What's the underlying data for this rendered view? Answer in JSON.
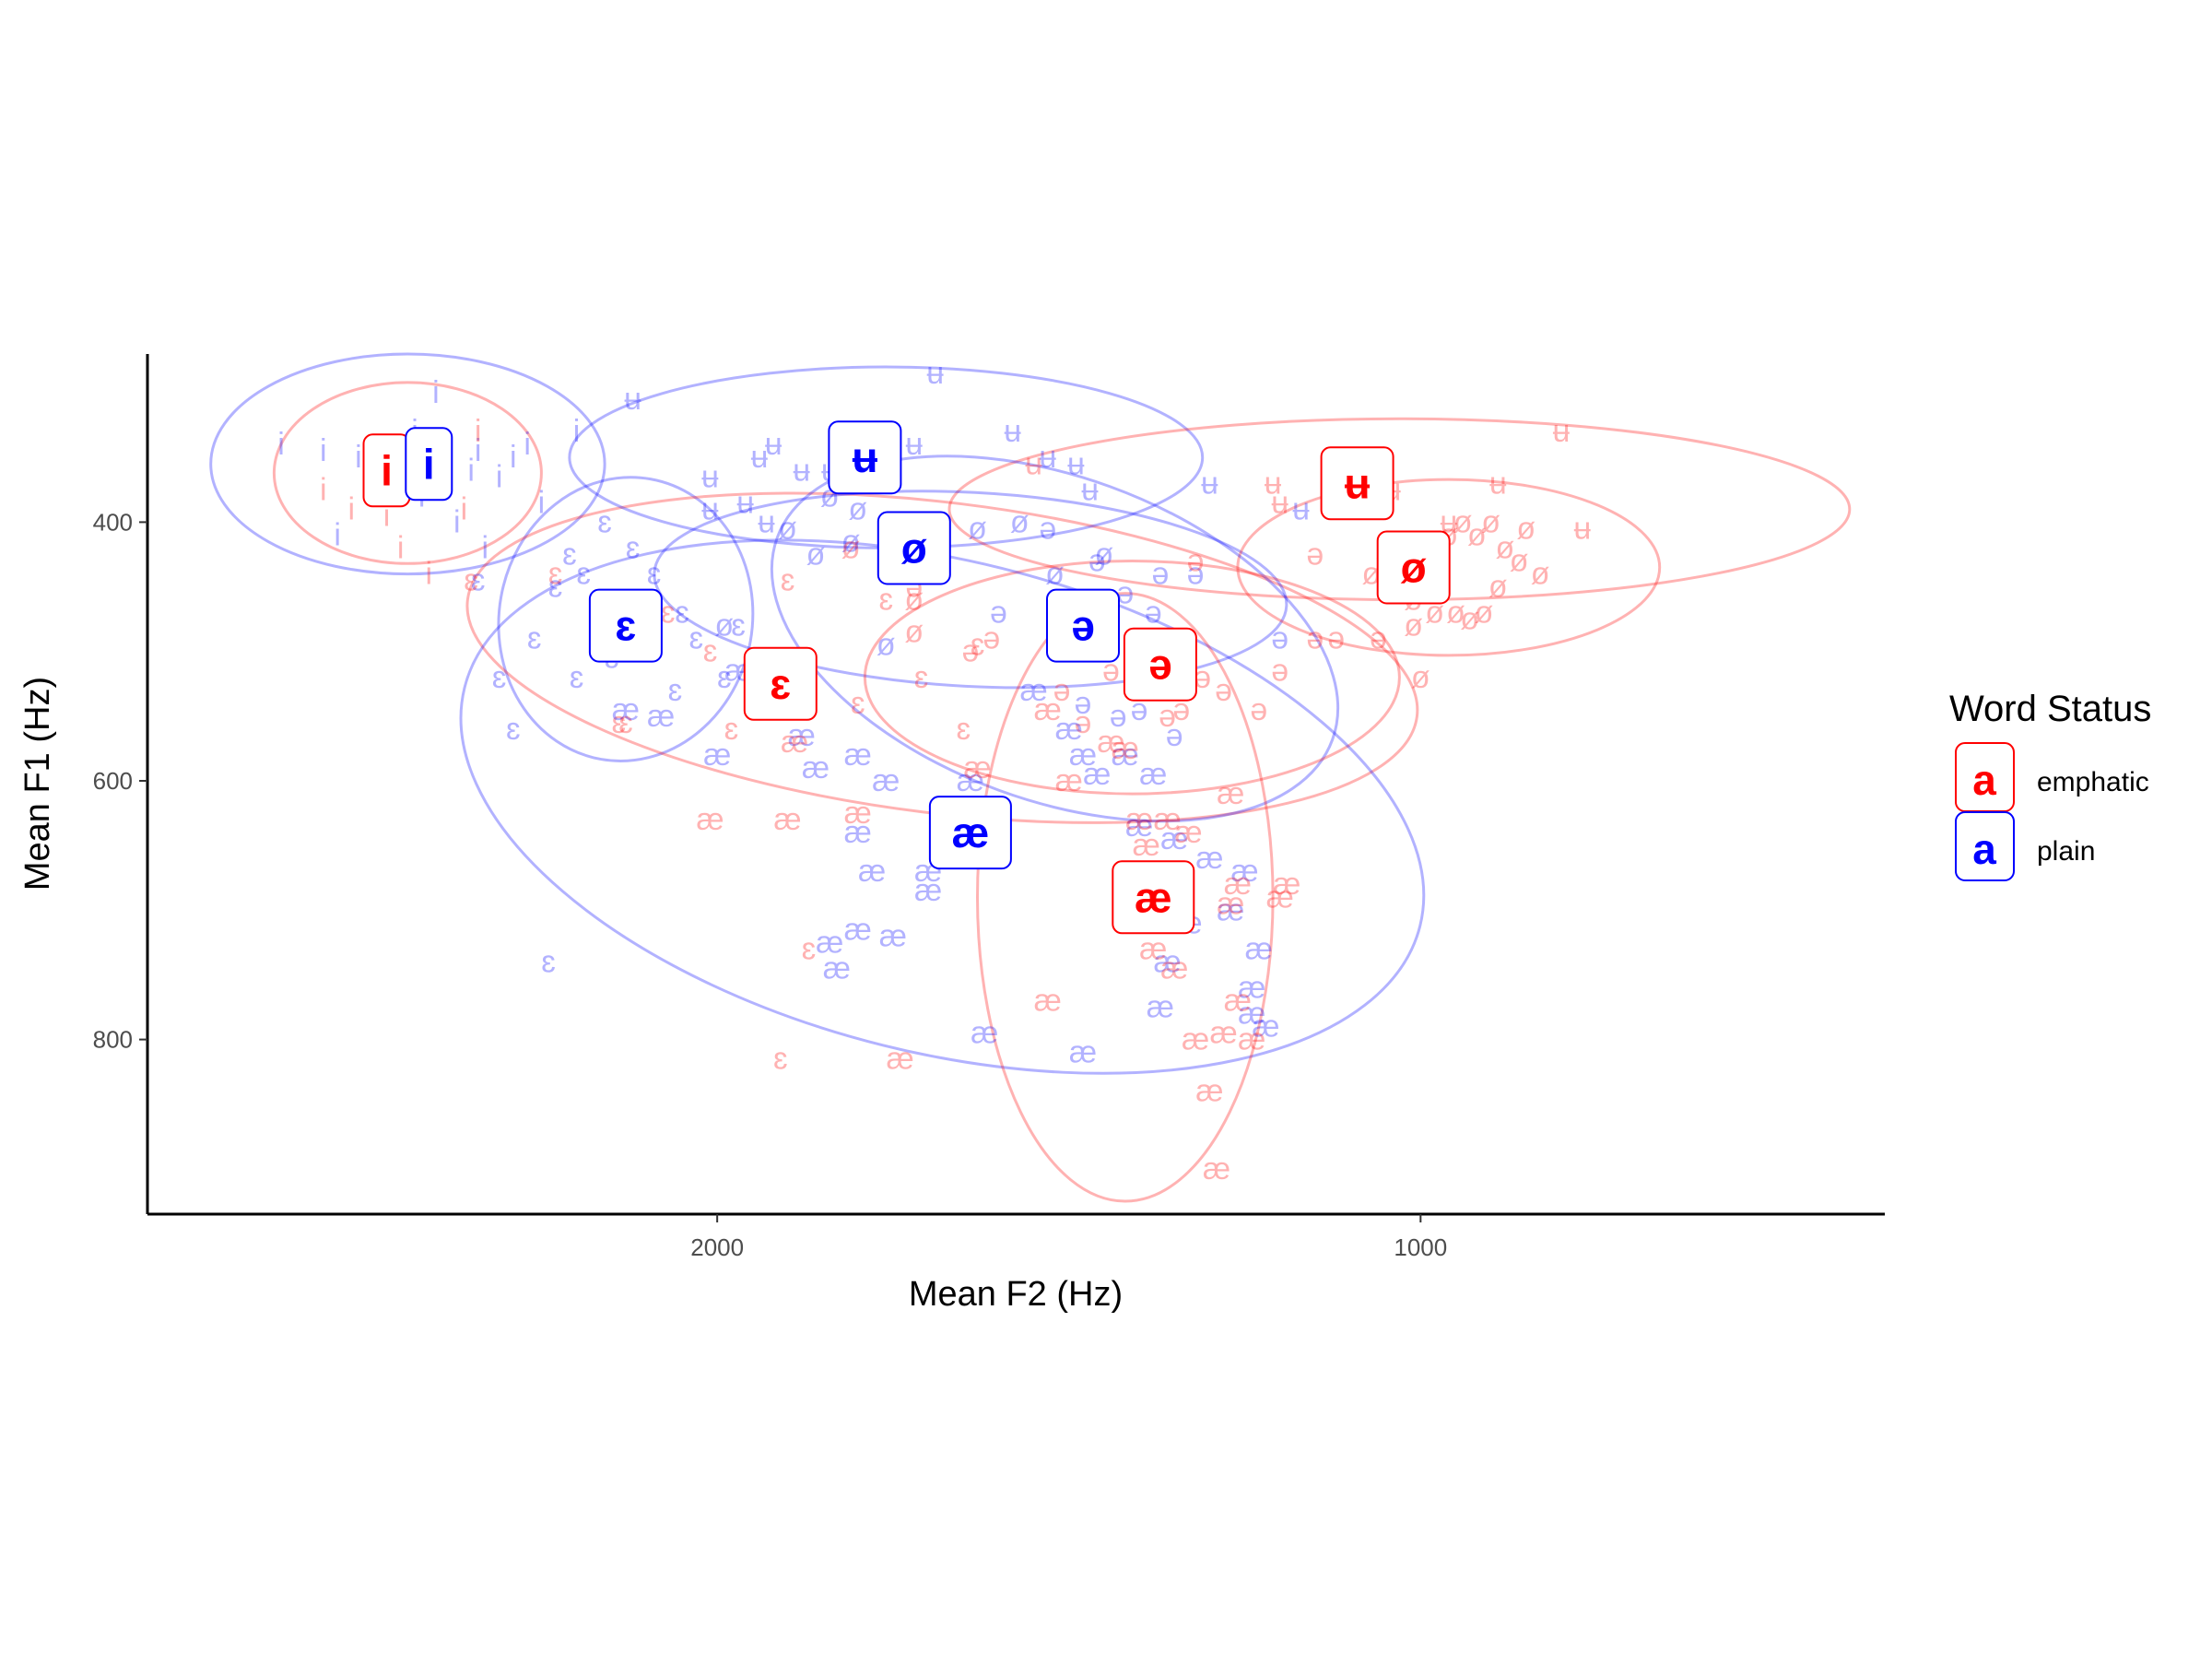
{
  "chart_data": {
    "type": "scatter",
    "xlabel": "Mean F2 (Hz)",
    "ylabel": "Mean F1 (Hz)",
    "x_reversed": true,
    "y_reversed": true,
    "xlim": [
      2810,
      340
    ],
    "ylim": [
      270,
      935
    ],
    "x_ticks": [
      2000,
      1000
    ],
    "x_tick_labels": [
      "2000",
      "1000"
    ],
    "y_ticks": [
      400,
      600,
      800
    ],
    "y_tick_labels": [
      "400",
      "600",
      "800"
    ],
    "grid": false,
    "legend": {
      "title": "Word Status",
      "position": "right",
      "key_glyph": "a",
      "entries": [
        "emphatic",
        "plain"
      ]
    },
    "colors": {
      "emphatic": "#ff0000",
      "plain": "#0000ff"
    },
    "groups": [
      {
        "name": "emphatic",
        "color": "#ff0000",
        "vowel": "i",
        "mean": [
          2470,
          360
        ],
        "ellipse": {
          "cx": 2440,
          "cy": 362,
          "rx": 190,
          "ry": 70,
          "angle": 0
        }
      },
      {
        "name": "plain",
        "color": "#0000ff",
        "vowel": "i",
        "mean": [
          2410,
          355
        ],
        "ellipse": {
          "cx": 2440,
          "cy": 355,
          "rx": 280,
          "ry": 85,
          "angle": 0
        }
      },
      {
        "name": "plain",
        "color": "#0000ff",
        "vowel": "ɛ",
        "mean": [
          2130,
          480
        ],
        "ellipse": {
          "cx": 2130,
          "cy": 475,
          "rx": 180,
          "ry": 110,
          "angle": 10
        }
      },
      {
        "name": "emphatic",
        "color": "#ff0000",
        "vowel": "ɛ",
        "mean": [
          1910,
          525
        ],
        "ellipse": {
          "cx": 1680,
          "cy": 505,
          "rx": 680,
          "ry": 120,
          "angle": 7
        }
      },
      {
        "name": "plain",
        "color": "#0000ff",
        "vowel": "ʉ",
        "mean": [
          1790,
          350
        ],
        "ellipse": {
          "cx": 1760,
          "cy": 350,
          "rx": 450,
          "ry": 70,
          "angle": 0
        }
      },
      {
        "name": "emphatic",
        "color": "#ff0000",
        "vowel": "ʉ",
        "mean": [
          1090,
          370
        ],
        "ellipse": {
          "cx": 1030,
          "cy": 390,
          "rx": 640,
          "ry": 70,
          "angle": 0
        }
      },
      {
        "name": "plain",
        "color": "#0000ff",
        "vowel": "ø",
        "mean": [
          1720,
          420
        ],
        "ellipse": {
          "cx": 1640,
          "cy": 452,
          "rx": 450,
          "ry": 75,
          "angle": 3
        }
      },
      {
        "name": "emphatic",
        "color": "#ff0000",
        "vowel": "ø",
        "mean": [
          1010,
          435
        ],
        "ellipse": {
          "cx": 960,
          "cy": 435,
          "rx": 300,
          "ry": 68,
          "angle": 0
        }
      },
      {
        "name": "plain",
        "color": "#0000ff",
        "vowel": "ə",
        "mean": [
          1480,
          480
        ],
        "ellipse": {
          "cx": 1520,
          "cy": 490,
          "rx": 420,
          "ry": 125,
          "angle": 20
        }
      },
      {
        "name": "emphatic",
        "color": "#ff0000",
        "vowel": "ə",
        "mean": [
          1370,
          510
        ],
        "ellipse": {
          "cx": 1410,
          "cy": 520,
          "rx": 380,
          "ry": 90,
          "angle": 0
        }
      },
      {
        "name": "plain",
        "color": "#0000ff",
        "vowel": "æ",
        "mean": [
          1640,
          640
        ],
        "ellipse": {
          "cx": 1680,
          "cy": 620,
          "rx": 700,
          "ry": 190,
          "angle": 14
        }
      },
      {
        "name": "emphatic",
        "color": "#ff0000",
        "vowel": "æ",
        "mean": [
          1380,
          690
        ],
        "ellipse": {
          "cx": 1420,
          "cy": 690,
          "rx": 210,
          "ry": 235,
          "angle": 0
        }
      }
    ],
    "points": [
      [
        "p",
        "i",
        2620,
        340
      ],
      [
        "p",
        "i",
        2560,
        345
      ],
      [
        "p",
        "i",
        2510,
        350
      ],
      [
        "p",
        "i",
        2480,
        355
      ],
      [
        "p",
        "i",
        2430,
        330
      ],
      [
        "p",
        "i",
        2400,
        300
      ],
      [
        "p",
        "i",
        2380,
        370
      ],
      [
        "p",
        "i",
        2350,
        360
      ],
      [
        "p",
        "i",
        2340,
        345
      ],
      [
        "p",
        "i",
        2310,
        365
      ],
      [
        "p",
        "i",
        2290,
        350
      ],
      [
        "p",
        "i",
        2270,
        340
      ],
      [
        "p",
        "i",
        2250,
        385
      ],
      [
        "p",
        "i",
        2330,
        420
      ],
      [
        "p",
        "i",
        2420,
        380
      ],
      [
        "p",
        "i",
        2540,
        410
      ],
      [
        "p",
        "i",
        2200,
        330
      ],
      [
        "p",
        "i",
        2370,
        400
      ],
      [
        "e",
        "i",
        2560,
        375
      ],
      [
        "e",
        "i",
        2520,
        390
      ],
      [
        "e",
        "i",
        2500,
        360
      ],
      [
        "e",
        "i",
        2470,
        395
      ],
      [
        "e",
        "i",
        2450,
        420
      ],
      [
        "e",
        "i",
        2410,
        440
      ],
      [
        "e",
        "i",
        2340,
        330
      ],
      [
        "e",
        "i",
        2360,
        390
      ],
      [
        "p",
        "ɛ",
        2340,
        445
      ],
      [
        "p",
        "ɛ",
        2310,
        520
      ],
      [
        "p",
        "ɛ",
        2290,
        560
      ],
      [
        "p",
        "ɛ",
        2260,
        490
      ],
      [
        "p",
        "ɛ",
        2230,
        450
      ],
      [
        "p",
        "ɛ",
        2210,
        425
      ],
      [
        "p",
        "ɛ",
        2190,
        440
      ],
      [
        "p",
        "ɛ",
        2170,
        470
      ],
      [
        "p",
        "ɛ",
        2150,
        505
      ],
      [
        "p",
        "ɛ",
        2120,
        420
      ],
      [
        "p",
        "ɛ",
        2090,
        440
      ],
      [
        "p",
        "ɛ",
        2050,
        470
      ],
      [
        "p",
        "ɛ",
        2030,
        490
      ],
      [
        "p",
        "ɛ",
        1990,
        520
      ],
      [
        "p",
        "ɛ",
        1970,
        480
      ],
      [
        "p",
        "ɛ",
        2200,
        520
      ],
      [
        "p",
        "ɛ",
        2160,
        400
      ],
      [
        "p",
        "ɛ",
        2240,
        740
      ],
      [
        "p",
        "ɛ",
        2060,
        530
      ],
      [
        "e",
        "ɛ",
        2350,
        445
      ],
      [
        "e",
        "ɛ",
        2230,
        440
      ],
      [
        "e",
        "ɛ",
        2130,
        555
      ],
      [
        "e",
        "ɛ",
        2070,
        470
      ],
      [
        "e",
        "ɛ",
        2010,
        500
      ],
      [
        "e",
        "ɛ",
        1980,
        560
      ],
      [
        "e",
        "ɛ",
        1900,
        445
      ],
      [
        "e",
        "ɛ",
        1880,
        510
      ],
      [
        "e",
        "ɛ",
        1800,
        540
      ],
      [
        "e",
        "ɛ",
        1760,
        460
      ],
      [
        "e",
        "ɛ",
        1710,
        520
      ],
      [
        "e",
        "ɛ",
        1650,
        560
      ],
      [
        "e",
        "ɛ",
        1630,
        495
      ],
      [
        "e",
        "ɛ",
        1870,
        730
      ],
      [
        "e",
        "ɛ",
        1910,
        815
      ],
      [
        "e",
        "ɛ",
        2120,
        470
      ],
      [
        "e",
        "ɛ",
        2140,
        555
      ],
      [
        "p",
        "ʉ",
        2120,
        305
      ],
      [
        "p",
        "ʉ",
        2010,
        365
      ],
      [
        "p",
        "ʉ",
        1960,
        385
      ],
      [
        "p",
        "ʉ",
        1940,
        350
      ],
      [
        "p",
        "ʉ",
        1920,
        340
      ],
      [
        "p",
        "ʉ",
        1880,
        360
      ],
      [
        "p",
        "ʉ",
        1840,
        360
      ],
      [
        "p",
        "ʉ",
        1780,
        345
      ],
      [
        "p",
        "ʉ",
        1720,
        340
      ],
      [
        "p",
        "ʉ",
        1690,
        285
      ],
      [
        "p",
        "ʉ",
        1580,
        330
      ],
      [
        "p",
        "ʉ",
        1530,
        350
      ],
      [
        "p",
        "ʉ",
        1490,
        355
      ],
      [
        "p",
        "ʉ",
        1470,
        375
      ],
      [
        "p",
        "ʉ",
        1300,
        370
      ],
      [
        "p",
        "ʉ",
        1170,
        390
      ],
      [
        "p",
        "ʉ",
        1930,
        400
      ],
      [
        "p",
        "ʉ",
        2010,
        390
      ],
      [
        "p",
        "ʉ",
        1800,
        370
      ],
      [
        "e",
        "ʉ",
        1550,
        355
      ],
      [
        "e",
        "ʉ",
        1200,
        385
      ],
      [
        "e",
        "ʉ",
        1120,
        370
      ],
      [
        "e",
        "ʉ",
        1080,
        385
      ],
      [
        "e",
        "ʉ",
        1040,
        375
      ],
      [
        "e",
        "ʉ",
        960,
        400
      ],
      [
        "e",
        "ʉ",
        890,
        370
      ],
      [
        "e",
        "ʉ",
        800,
        330
      ],
      [
        "e",
        "ʉ",
        770,
        405
      ],
      [
        "e",
        "ʉ",
        1210,
        370
      ],
      [
        "p",
        "ø",
        1840,
        380
      ],
      [
        "p",
        "ø",
        1800,
        390
      ],
      [
        "p",
        "ø",
        1760,
        430
      ],
      [
        "p",
        "ø",
        1700,
        410
      ],
      [
        "p",
        "ø",
        1630,
        405
      ],
      [
        "p",
        "ø",
        1570,
        400
      ],
      [
        "p",
        "ø",
        1520,
        440
      ],
      [
        "p",
        "ø",
        1490,
        470
      ],
      [
        "p",
        "ø",
        1450,
        425
      ],
      [
        "p",
        "ø",
        1760,
        495
      ],
      [
        "p",
        "ø",
        1990,
        480
      ],
      [
        "p",
        "ø",
        1900,
        405
      ],
      [
        "p",
        "ø",
        1860,
        425
      ],
      [
        "p",
        "ø",
        1810,
        415
      ],
      [
        "e",
        "ø",
        1810,
        420
      ],
      [
        "e",
        "ø",
        1760,
        435
      ],
      [
        "e",
        "ø",
        1720,
        485
      ],
      [
        "e",
        "ø",
        1720,
        460
      ],
      [
        "e",
        "ø",
        1070,
        440
      ],
      [
        "e",
        "ø",
        1050,
        420
      ],
      [
        "e",
        "ø",
        1000,
        415
      ],
      [
        "e",
        "ø",
        960,
        410
      ],
      [
        "e",
        "ø",
        940,
        400
      ],
      [
        "e",
        "ø",
        920,
        410
      ],
      [
        "e",
        "ø",
        900,
        400
      ],
      [
        "e",
        "ø",
        880,
        420
      ],
      [
        "e",
        "ø",
        860,
        430
      ],
      [
        "e",
        "ø",
        850,
        405
      ],
      [
        "e",
        "ø",
        830,
        440
      ],
      [
        "e",
        "ø",
        1010,
        460
      ],
      [
        "e",
        "ø",
        980,
        470
      ],
      [
        "e",
        "ø",
        950,
        470
      ],
      [
        "e",
        "ø",
        930,
        475
      ],
      [
        "e",
        "ø",
        910,
        470
      ],
      [
        "e",
        "ø",
        890,
        450
      ],
      [
        "e",
        "ø",
        1030,
        455
      ],
      [
        "e",
        "ø",
        1000,
        520
      ],
      [
        "e",
        "ø",
        1010,
        480
      ],
      [
        "p",
        "ə",
        1530,
        405
      ],
      [
        "p",
        "ə",
        1460,
        430
      ],
      [
        "p",
        "ə",
        1420,
        455
      ],
      [
        "p",
        "ə",
        1370,
        440
      ],
      [
        "p",
        "ə",
        1320,
        440
      ],
      [
        "p",
        "ə",
        1200,
        490
      ],
      [
        "p",
        "ə",
        1480,
        540
      ],
      [
        "p",
        "ə",
        1430,
        550
      ],
      [
        "p",
        "ə",
        1400,
        545
      ],
      [
        "p",
        "ə",
        1350,
        565
      ],
      [
        "p",
        "ə",
        1600,
        470
      ],
      [
        "p",
        "ə",
        1380,
        470
      ],
      [
        "e",
        "ə",
        1720,
        450
      ],
      [
        "e",
        "ə",
        1640,
        500
      ],
      [
        "e",
        "ə",
        1610,
        490
      ],
      [
        "e",
        "ə",
        1510,
        530
      ],
      [
        "e",
        "ə",
        1480,
        555
      ],
      [
        "e",
        "ə",
        1440,
        515
      ],
      [
        "e",
        "ə",
        1400,
        525
      ],
      [
        "e",
        "ə",
        1360,
        550
      ],
      [
        "e",
        "ə",
        1340,
        545
      ],
      [
        "e",
        "ə",
        1310,
        520
      ],
      [
        "e",
        "ə",
        1280,
        530
      ],
      [
        "e",
        "ə",
        1230,
        545
      ],
      [
        "e",
        "ə",
        1200,
        515
      ],
      [
        "e",
        "ə",
        1150,
        425
      ],
      [
        "e",
        "ə",
        1150,
        490
      ],
      [
        "e",
        "ə",
        1120,
        490
      ],
      [
        "e",
        "ə",
        1060,
        490
      ],
      [
        "e",
        "ə",
        1320,
        430
      ],
      [
        "p",
        "æ",
        2130,
        545
      ],
      [
        "p",
        "æ",
        2080,
        550
      ],
      [
        "p",
        "æ",
        2000,
        580
      ],
      [
        "p",
        "æ",
        1970,
        515
      ],
      [
        "p",
        "æ",
        1880,
        565
      ],
      [
        "p",
        "æ",
        1860,
        590
      ],
      [
        "p",
        "æ",
        1800,
        580
      ],
      [
        "p",
        "æ",
        1800,
        640
      ],
      [
        "p",
        "æ",
        1780,
        670
      ],
      [
        "p",
        "æ",
        1760,
        600
      ],
      [
        "p",
        "æ",
        1700,
        670
      ],
      [
        "p",
        "æ",
        1640,
        600
      ],
      [
        "p",
        "æ",
        1550,
        530
      ],
      [
        "p",
        "æ",
        1500,
        560
      ],
      [
        "p",
        "æ",
        1480,
        580
      ],
      [
        "p",
        "æ",
        1460,
        595
      ],
      [
        "p",
        "æ",
        1420,
        580
      ],
      [
        "p",
        "æ",
        1380,
        595
      ],
      [
        "p",
        "æ",
        1350,
        645
      ],
      [
        "p",
        "æ",
        1400,
        635
      ],
      [
        "p",
        "æ",
        1300,
        660
      ],
      [
        "p",
        "æ",
        1250,
        670
      ],
      [
        "p",
        "æ",
        1270,
        700
      ],
      [
        "p",
        "æ",
        1230,
        730
      ],
      [
        "p",
        "æ",
        1240,
        760
      ],
      [
        "p",
        "æ",
        1240,
        780
      ],
      [
        "p",
        "æ",
        1220,
        790
      ],
      [
        "p",
        "æ",
        1370,
        775
      ],
      [
        "p",
        "æ",
        1360,
        740
      ],
      [
        "p",
        "æ",
        1330,
        710
      ],
      [
        "p",
        "æ",
        1480,
        810
      ],
      [
        "p",
        "æ",
        1620,
        795
      ],
      [
        "p",
        "æ",
        1750,
        720
      ],
      [
        "p",
        "æ",
        1700,
        685
      ],
      [
        "p",
        "æ",
        1830,
        745
      ],
      [
        "p",
        "æ",
        1800,
        715
      ],
      [
        "p",
        "æ",
        1840,
        725
      ],
      [
        "e",
        "æ",
        2010,
        630
      ],
      [
        "e",
        "æ",
        1900,
        630
      ],
      [
        "e",
        "æ",
        1890,
        570
      ],
      [
        "e",
        "æ",
        1800,
        625
      ],
      [
        "e",
        "æ",
        1630,
        590
      ],
      [
        "e",
        "æ",
        1530,
        545
      ],
      [
        "e",
        "æ",
        1500,
        600
      ],
      [
        "e",
        "æ",
        1440,
        570
      ],
      [
        "e",
        "æ",
        1420,
        575
      ],
      [
        "e",
        "æ",
        1400,
        630
      ],
      [
        "e",
        "æ",
        1390,
        650
      ],
      [
        "e",
        "æ",
        1360,
        630
      ],
      [
        "e",
        "æ",
        1330,
        640
      ],
      [
        "e",
        "æ",
        1270,
        610
      ],
      [
        "e",
        "æ",
        1260,
        680
      ],
      [
        "e",
        "æ",
        1270,
        695
      ],
      [
        "e",
        "æ",
        1200,
        690
      ],
      [
        "e",
        "æ",
        1190,
        680
      ],
      [
        "e",
        "æ",
        1260,
        770
      ],
      [
        "e",
        "æ",
        1280,
        795
      ],
      [
        "e",
        "æ",
        1320,
        800
      ],
      [
        "e",
        "æ",
        1350,
        745
      ],
      [
        "e",
        "æ",
        1380,
        730
      ],
      [
        "e",
        "æ",
        1530,
        770
      ],
      [
        "e",
        "æ",
        1740,
        815
      ],
      [
        "e",
        "æ",
        1300,
        840
      ],
      [
        "e",
        "æ",
        1290,
        900
      ],
      [
        "e",
        "æ",
        1240,
        800
      ]
    ]
  }
}
